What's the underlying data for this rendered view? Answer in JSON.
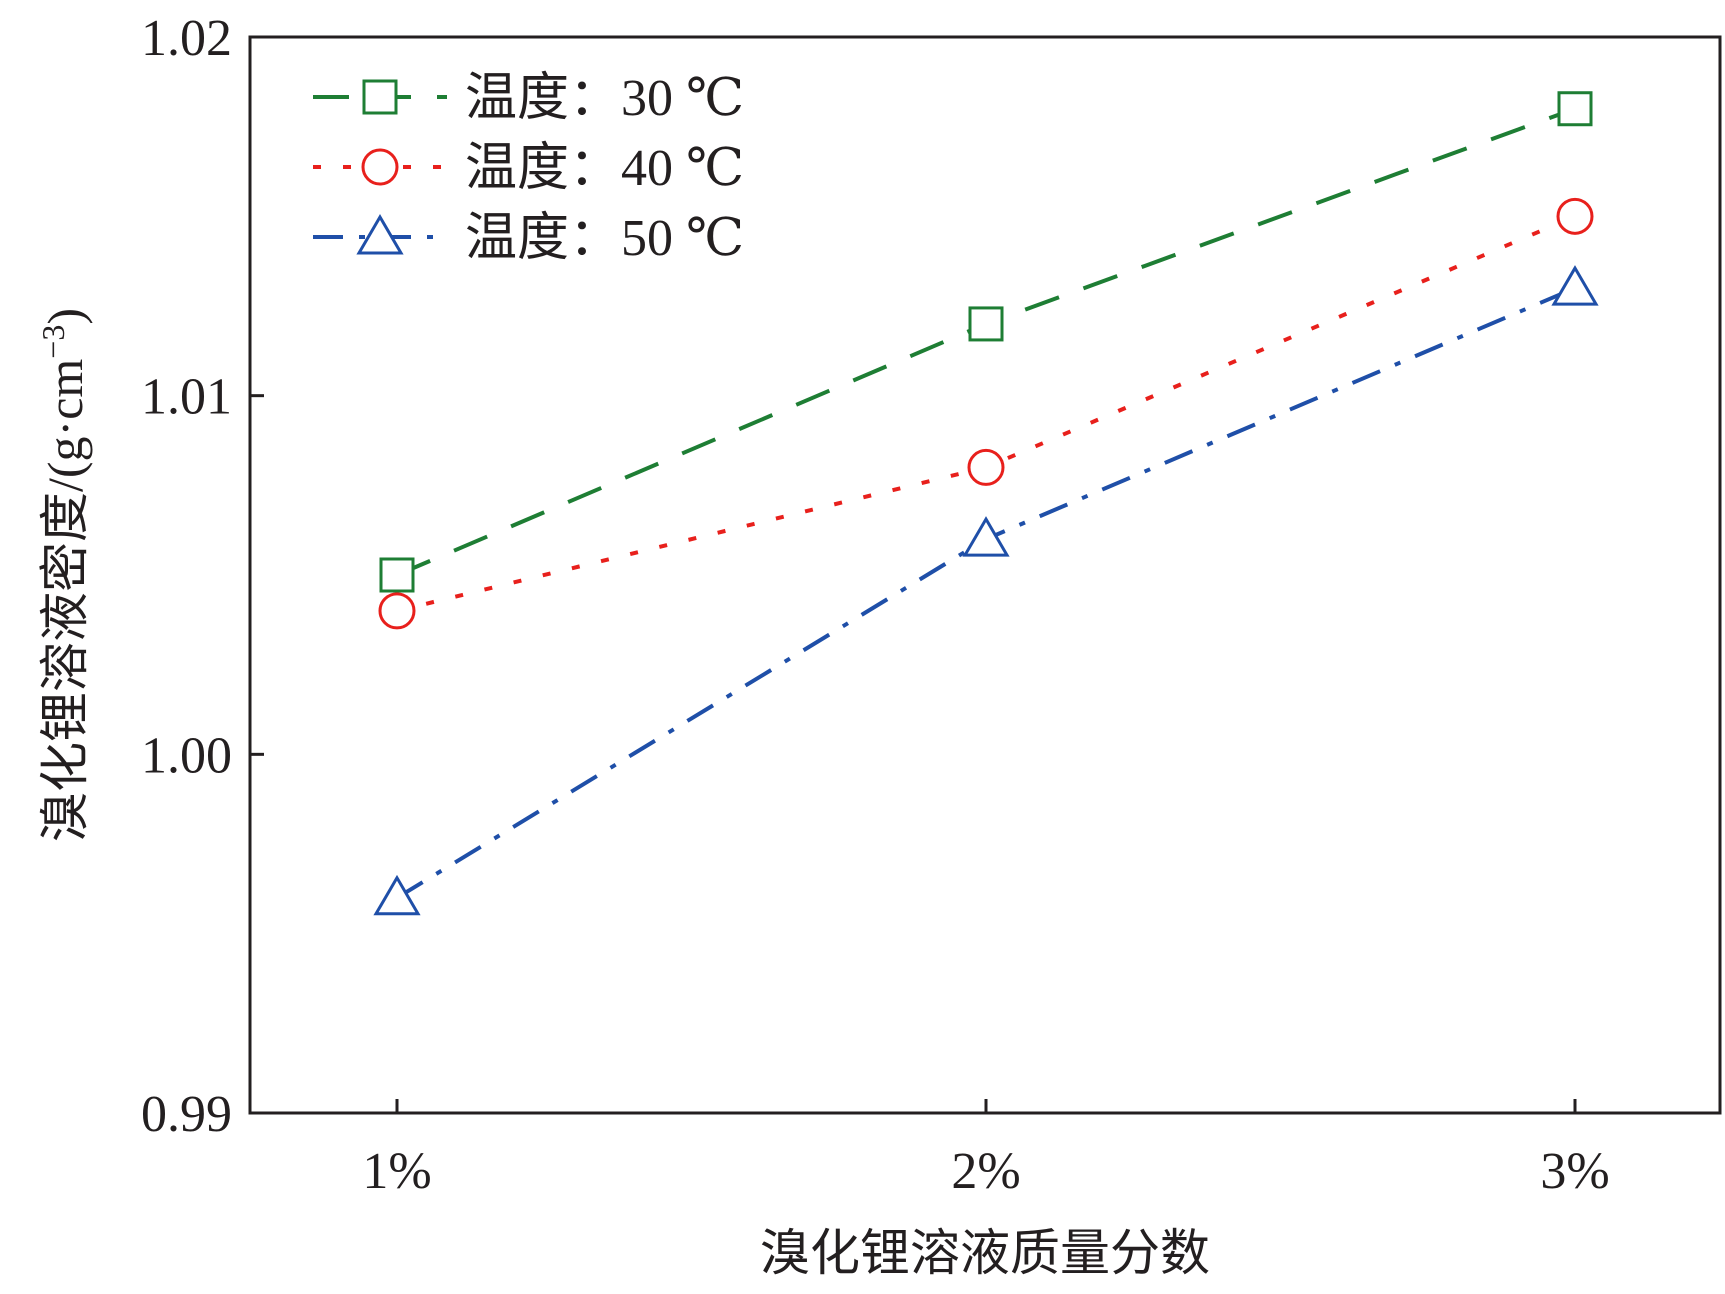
{
  "chart_data": {
    "type": "line",
    "xlabel": "溴化锂溶液质量分数",
    "ylabel_main": "溴化锂溶液密度/(g·cm",
    "ylabel_sup": "−3",
    "ylabel_close": ")",
    "categories": [
      "1%",
      "2%",
      "3%"
    ],
    "ylim": [
      0.99,
      1.02
    ],
    "yticks": [
      0.99,
      1.0,
      1.01,
      1.02
    ],
    "ytick_labels": [
      "0.99",
      "1.00",
      "1.01",
      "1.02"
    ],
    "grid": false,
    "legend_position": "top-left",
    "series": [
      {
        "name": "温度：30 ℃",
        "values": [
          1.005,
          1.012,
          1.018
        ],
        "color": "#1e7e34",
        "marker": "square",
        "dash": "dashed"
      },
      {
        "name": "温度：40 ℃",
        "values": [
          1.004,
          1.008,
          1.015
        ],
        "color": "#e8201c",
        "marker": "circle",
        "dash": "dotted"
      },
      {
        "name": "温度：50 ℃",
        "values": [
          0.996,
          1.006,
          1.013
        ],
        "color": "#1f4fa8",
        "marker": "triangle",
        "dash": "dashdot"
      }
    ]
  }
}
